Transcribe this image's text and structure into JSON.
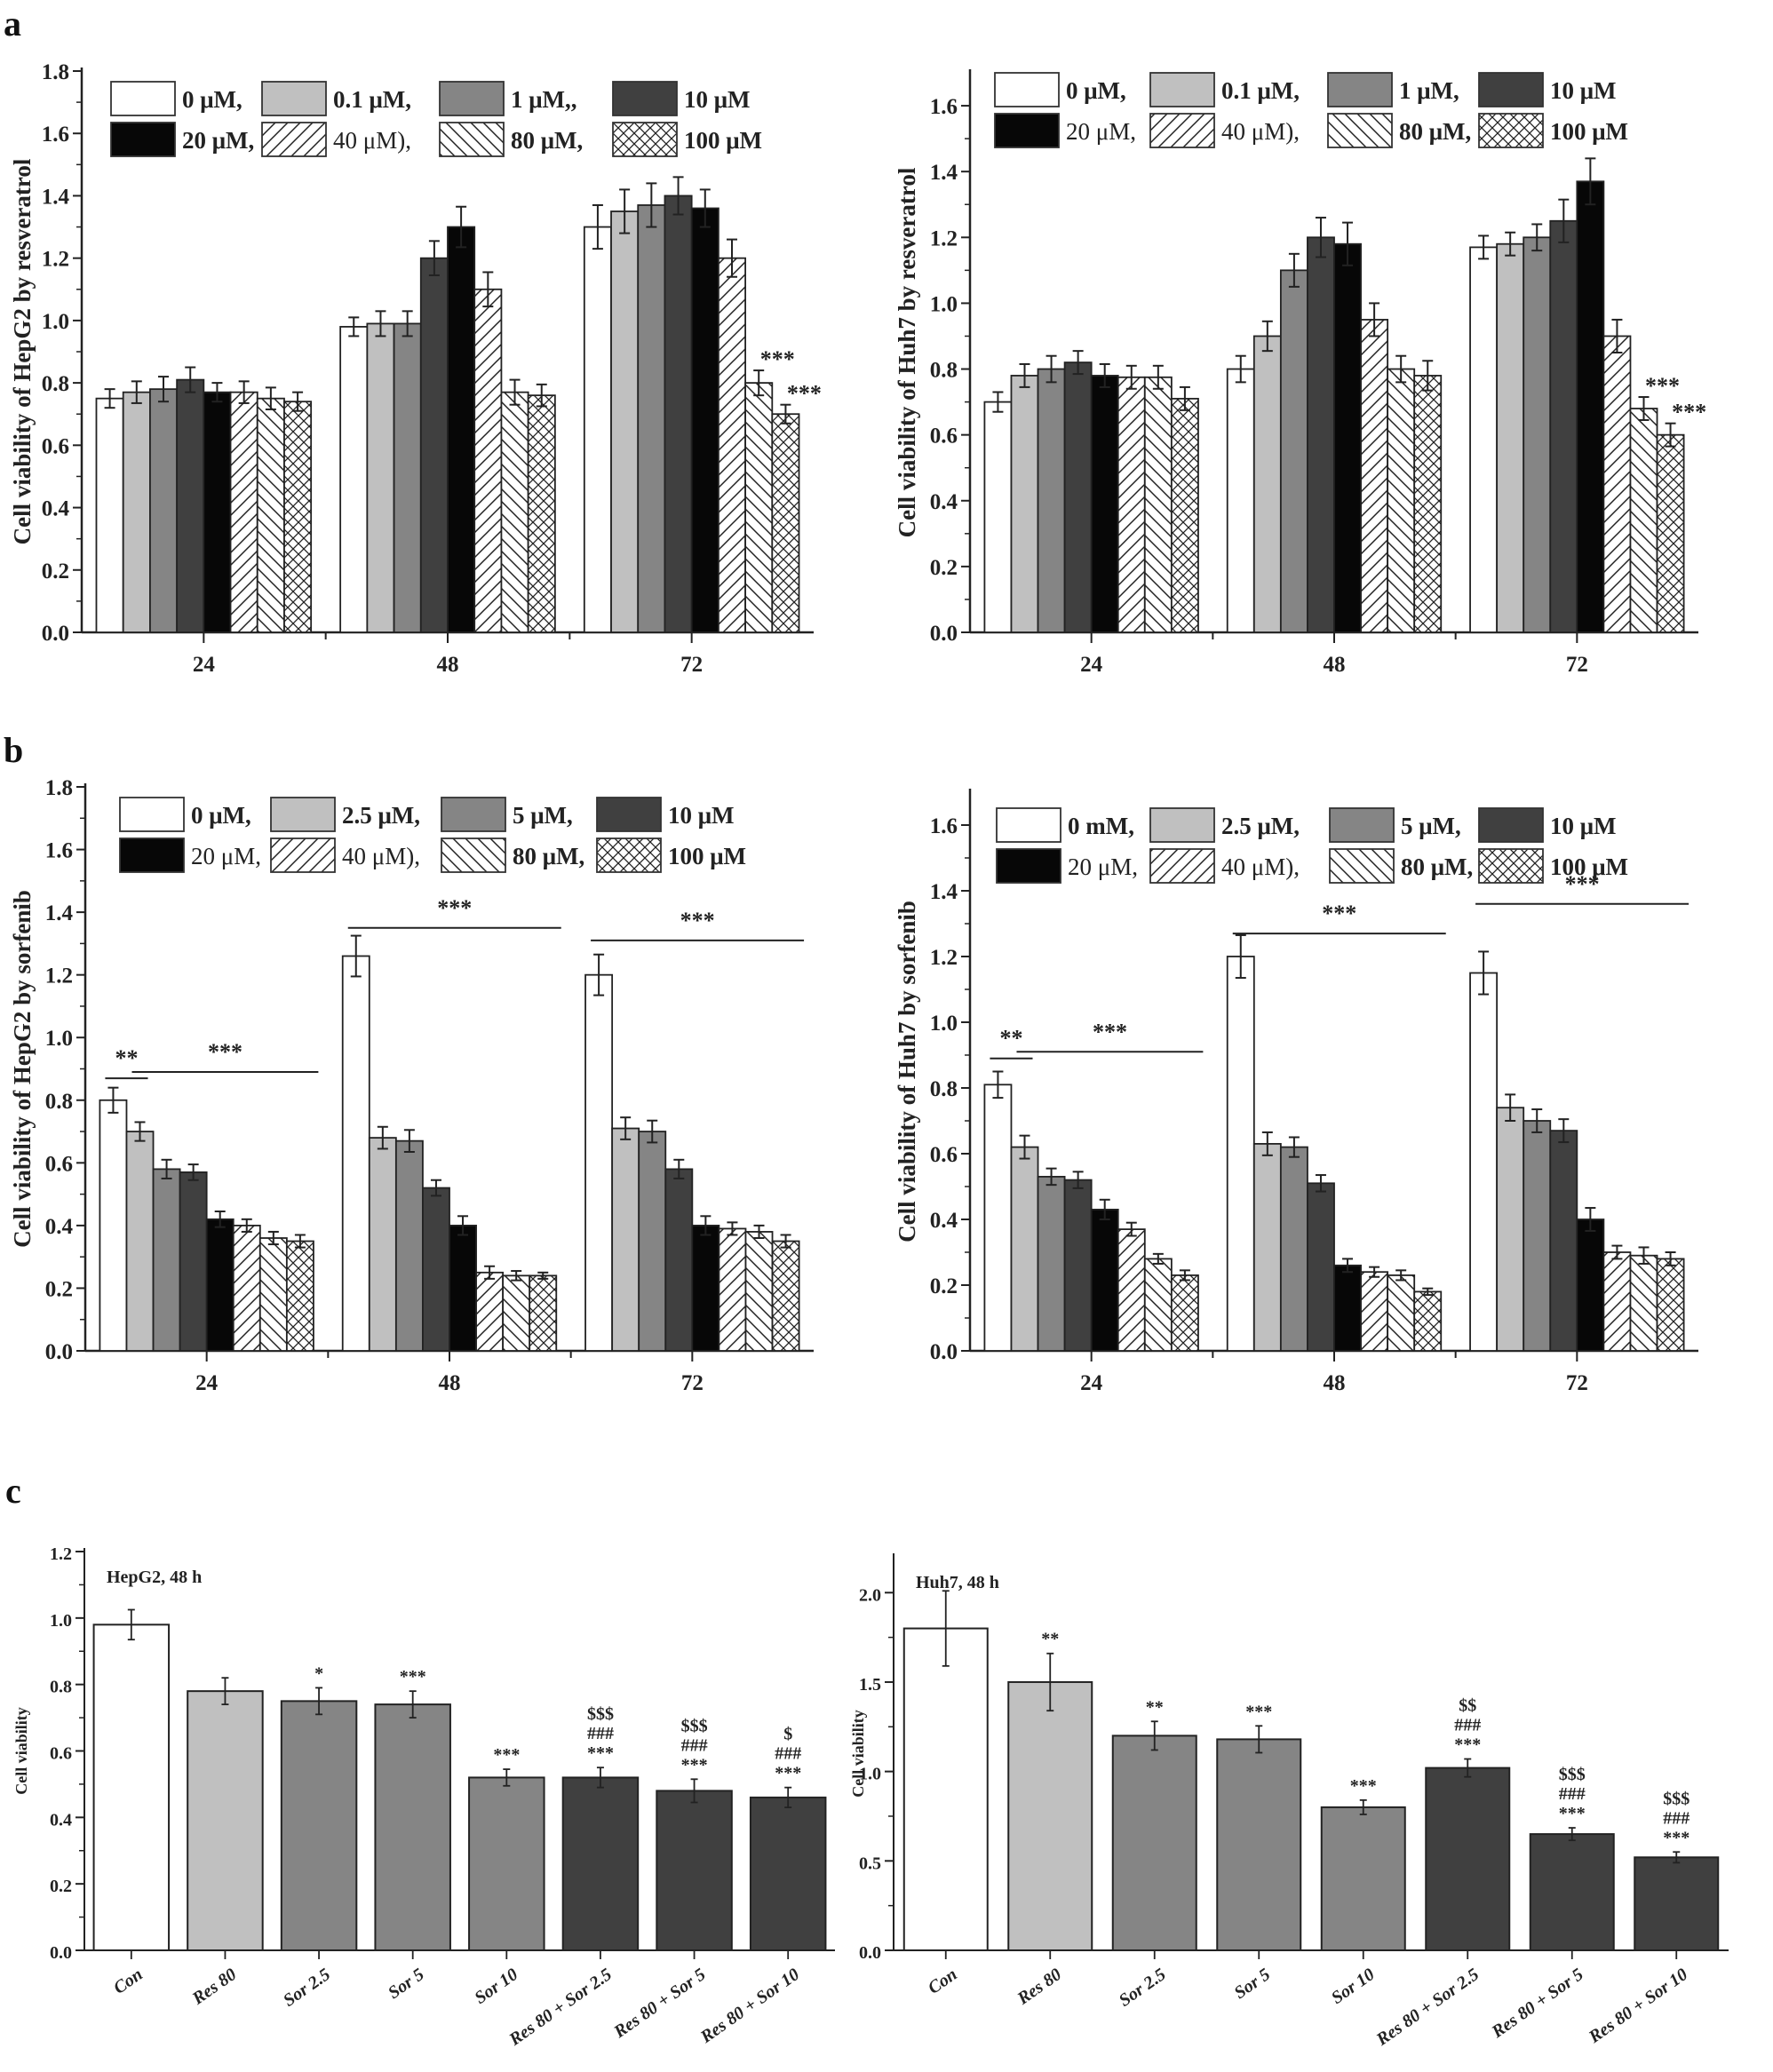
{
  "figure": {
    "panel_labels": [
      "a",
      "b",
      "c"
    ]
  },
  "styles": {
    "series_fills": [
      "#ffffff",
      "#c0c0c0",
      "#858585",
      "#404040",
      "#070707",
      "hatch-fwd",
      "hatch-back",
      "hatch-cross"
    ],
    "combo_fills": [
      "#ffffff",
      "#c0c0c0",
      "#858585",
      "#858585",
      "#858585",
      "#404040",
      "#404040",
      "#404040"
    ]
  },
  "chart_data": [
    {
      "id": "a-left",
      "panel": "a",
      "type": "bar",
      "title": "",
      "xlabel": "",
      "ylabel": "Cell viability of HepG2 by resveratrol",
      "ylim": [
        0,
        1.8
      ],
      "yticks": [
        "0.0",
        "0.2",
        "0.4",
        "0.6",
        "0.8",
        "1.0",
        "1.2",
        "1.4",
        "1.6",
        "1.8"
      ],
      "categories": [
        "24",
        "48",
        "72"
      ],
      "legend": {
        "placement": "top",
        "entries": [
          {
            "label": "0 μM,",
            "bold": true
          },
          {
            "label": "0.1 μM,",
            "bold": true
          },
          {
            "label": "1 μM,,",
            "bold": true
          },
          {
            "label": "10 μM",
            "bold": true
          },
          {
            "label": "20 μM,",
            "bold": true
          },
          {
            "label": "40 μM),",
            "bold": false
          },
          {
            "label": "80 μM,",
            "bold": true
          },
          {
            "label": "100 μM",
            "bold": true
          }
        ]
      },
      "series": [
        {
          "name": "0 μM",
          "values": [
            0.75,
            0.98,
            1.3
          ],
          "errors": [
            0.03,
            0.03,
            0.07
          ]
        },
        {
          "name": "0.1 μM",
          "values": [
            0.77,
            0.99,
            1.35
          ],
          "errors": [
            0.035,
            0.04,
            0.07
          ]
        },
        {
          "name": "1 μM",
          "values": [
            0.78,
            0.99,
            1.37
          ],
          "errors": [
            0.04,
            0.04,
            0.07
          ]
        },
        {
          "name": "10 μM",
          "values": [
            0.81,
            1.2,
            1.4
          ],
          "errors": [
            0.04,
            0.055,
            0.06
          ]
        },
        {
          "name": "20 μM",
          "values": [
            0.77,
            1.3,
            1.36
          ],
          "errors": [
            0.03,
            0.065,
            0.06
          ]
        },
        {
          "name": "40 μM",
          "values": [
            0.77,
            1.1,
            1.2
          ],
          "errors": [
            0.035,
            0.055,
            0.06
          ]
        },
        {
          "name": "80 μM",
          "values": [
            0.75,
            0.77,
            0.8
          ],
          "errors": [
            0.035,
            0.04,
            0.04
          ]
        },
        {
          "name": "100 μM",
          "values": [
            0.74,
            0.76,
            0.7
          ],
          "errors": [
            0.03,
            0.035,
            0.03
          ]
        }
      ],
      "annotations": [
        {
          "category": 2,
          "series": 6,
          "text": "***"
        },
        {
          "category": 2,
          "series": 7,
          "text": "***"
        }
      ]
    },
    {
      "id": "a-right",
      "panel": "a",
      "type": "bar",
      "title": "",
      "xlabel": "",
      "ylabel": "Cell viability of Huh7 by resveratrol",
      "ylim": [
        0,
        1.7
      ],
      "yticks": [
        "0.0",
        "0.2",
        "0.4",
        "0.6",
        "0.8",
        "1.0",
        "1.2",
        "1.4",
        "1.6"
      ],
      "categories": [
        "24",
        "48",
        "72"
      ],
      "legend": {
        "placement": "top",
        "entries": [
          {
            "label": "0 μM,",
            "bold": true
          },
          {
            "label": "0.1 μM,",
            "bold": true
          },
          {
            "label": "1 μM,",
            "bold": true
          },
          {
            "label": "10 μM",
            "bold": true
          },
          {
            "label": "20 μM,",
            "bold": false
          },
          {
            "label": "40 μM),",
            "bold": false
          },
          {
            "label": "80 μM,",
            "bold": true
          },
          {
            "label": "100 μM",
            "bold": true
          }
        ]
      },
      "series": [
        {
          "name": "0 μM",
          "values": [
            0.7,
            0.8,
            1.17
          ],
          "errors": [
            0.03,
            0.04,
            0.035
          ]
        },
        {
          "name": "0.1 μM",
          "values": [
            0.78,
            0.9,
            1.18
          ],
          "errors": [
            0.035,
            0.045,
            0.035
          ]
        },
        {
          "name": "1 μM",
          "values": [
            0.8,
            1.1,
            1.2
          ],
          "errors": [
            0.04,
            0.05,
            0.04
          ]
        },
        {
          "name": "10 μM",
          "values": [
            0.82,
            1.2,
            1.25
          ],
          "errors": [
            0.035,
            0.06,
            0.065
          ]
        },
        {
          "name": "20 μM",
          "values": [
            0.78,
            1.18,
            1.37
          ],
          "errors": [
            0.035,
            0.065,
            0.07
          ]
        },
        {
          "name": "40 μM",
          "values": [
            0.775,
            0.95,
            0.9
          ],
          "errors": [
            0.035,
            0.05,
            0.05
          ]
        },
        {
          "name": "80 μM",
          "values": [
            0.775,
            0.8,
            0.68
          ],
          "errors": [
            0.035,
            0.04,
            0.035
          ]
        },
        {
          "name": "100 μM",
          "values": [
            0.71,
            0.78,
            0.6
          ],
          "errors": [
            0.035,
            0.045,
            0.035
          ]
        }
      ],
      "annotations": [
        {
          "category": 2,
          "series": 6,
          "text": "***"
        },
        {
          "category": 2,
          "series": 7,
          "text": "***"
        }
      ]
    },
    {
      "id": "b-left",
      "panel": "b",
      "type": "bar",
      "title": "",
      "xlabel": "",
      "ylabel": "Cell viability of HepG2 by sorfenib",
      "ylim": [
        0,
        1.8
      ],
      "yticks": [
        "0.0",
        "0.2",
        "0.4",
        "0.6",
        "0.8",
        "1.0",
        "1.2",
        "1.4",
        "1.6",
        "1.8"
      ],
      "categories": [
        "24",
        "48",
        "72"
      ],
      "legend": {
        "placement": "top",
        "entries": [
          {
            "label": "0 μM,",
            "bold": true
          },
          {
            "label": "2.5 μM,",
            "bold": true
          },
          {
            "label": "5 μM,",
            "bold": true
          },
          {
            "label": "10 μM",
            "bold": true
          },
          {
            "label": "20 μM,",
            "bold": false
          },
          {
            "label": "40 μM),",
            "bold": false
          },
          {
            "label": "80 μM,",
            "bold": true
          },
          {
            "label": "100 μM",
            "bold": true
          }
        ]
      },
      "series": [
        {
          "name": "0 μM",
          "values": [
            0.8,
            1.26,
            1.2
          ],
          "errors": [
            0.04,
            0.065,
            0.065
          ]
        },
        {
          "name": "2.5 μM",
          "values": [
            0.7,
            0.68,
            0.71
          ],
          "errors": [
            0.03,
            0.035,
            0.035
          ]
        },
        {
          "name": "5 μM",
          "values": [
            0.58,
            0.67,
            0.7
          ],
          "errors": [
            0.03,
            0.035,
            0.035
          ]
        },
        {
          "name": "10 μM",
          "values": [
            0.57,
            0.52,
            0.58
          ],
          "errors": [
            0.025,
            0.025,
            0.03
          ]
        },
        {
          "name": "20 μM",
          "values": [
            0.42,
            0.4,
            0.4
          ],
          "errors": [
            0.025,
            0.03,
            0.03
          ]
        },
        {
          "name": "40 μM",
          "values": [
            0.4,
            0.25,
            0.39
          ],
          "errors": [
            0.02,
            0.02,
            0.02
          ]
        },
        {
          "name": "80 μM",
          "values": [
            0.36,
            0.24,
            0.38
          ],
          "errors": [
            0.02,
            0.015,
            0.02
          ]
        },
        {
          "name": "100 μM",
          "values": [
            0.35,
            0.24,
            0.35
          ],
          "errors": [
            0.02,
            0.01,
            0.02
          ]
        }
      ],
      "brackets": [
        {
          "category": 0,
          "from_series": 0,
          "to_series": 1,
          "text": "**",
          "y": 0.87
        },
        {
          "category": 0,
          "from_series": 1,
          "to_series": 7,
          "text": "***",
          "y": 0.89
        },
        {
          "category": 1,
          "from_series": 0,
          "to_series": 7,
          "text": "***",
          "y": 1.35
        },
        {
          "category": 2,
          "from_series": 0,
          "to_series": 7,
          "text": "***",
          "y": 1.31
        }
      ]
    },
    {
      "id": "b-right",
      "panel": "b",
      "type": "bar",
      "title": "",
      "xlabel": "",
      "ylabel": "Cell viability of Huh7 by sorfenib",
      "ylim": [
        0,
        1.7
      ],
      "yticks": [
        "0.0",
        "0.2",
        "0.4",
        "0.6",
        "0.8",
        "1.0",
        "1.2",
        "1.4",
        "1.6"
      ],
      "categories": [
        "24",
        "48",
        "72"
      ],
      "legend": {
        "placement": "top",
        "entries": [
          {
            "label": "0 mM,",
            "bold": true
          },
          {
            "label": "2.5 μM,",
            "bold": true
          },
          {
            "label": "5 μM,",
            "bold": true
          },
          {
            "label": "10 μM",
            "bold": true
          },
          {
            "label": "20 μM,",
            "bold": false
          },
          {
            "label": "40 μM),",
            "bold": false
          },
          {
            "label": "80 μM,",
            "bold": true
          },
          {
            "label": "100 μM",
            "bold": true
          }
        ]
      },
      "series": [
        {
          "name": "0 mM",
          "values": [
            0.81,
            1.2,
            1.15
          ],
          "errors": [
            0.04,
            0.065,
            0.065
          ]
        },
        {
          "name": "2.5 μM",
          "values": [
            0.62,
            0.63,
            0.74
          ],
          "errors": [
            0.035,
            0.035,
            0.04
          ]
        },
        {
          "name": "5 μM",
          "values": [
            0.53,
            0.62,
            0.7
          ],
          "errors": [
            0.025,
            0.03,
            0.035
          ]
        },
        {
          "name": "10 μM",
          "values": [
            0.52,
            0.51,
            0.67
          ],
          "errors": [
            0.025,
            0.025,
            0.035
          ]
        },
        {
          "name": "20 μM",
          "values": [
            0.43,
            0.26,
            0.4
          ],
          "errors": [
            0.03,
            0.02,
            0.035
          ]
        },
        {
          "name": "40 μM",
          "values": [
            0.37,
            0.24,
            0.3
          ],
          "errors": [
            0.02,
            0.015,
            0.02
          ]
        },
        {
          "name": "80 μM",
          "values": [
            0.28,
            0.23,
            0.29
          ],
          "errors": [
            0.015,
            0.015,
            0.025
          ]
        },
        {
          "name": "100 μM",
          "values": [
            0.23,
            0.18,
            0.28
          ],
          "errors": [
            0.015,
            0.01,
            0.02
          ]
        }
      ],
      "brackets": [
        {
          "category": 0,
          "from_series": 0,
          "to_series": 1,
          "text": "**",
          "y": 0.89
        },
        {
          "category": 0,
          "from_series": 1,
          "to_series": 7,
          "text": "***",
          "y": 0.91
        },
        {
          "category": 1,
          "from_series": 0,
          "to_series": 7,
          "text": "***",
          "y": 1.27
        },
        {
          "category": 2,
          "from_series": 0,
          "to_series": 7,
          "text": "***",
          "y": 1.36
        }
      ]
    },
    {
      "id": "c-left",
      "panel": "c",
      "type": "bar",
      "title": "HepG2, 48 h",
      "xlabel": "",
      "ylabel": "Cell viability",
      "ylim": [
        0,
        1.2
      ],
      "yticks": [
        "0.0",
        "0.2",
        "0.4",
        "0.6",
        "0.8",
        "1.0",
        "1.2"
      ],
      "categories": [
        "Con",
        "Res  80",
        "Sor 2.5",
        "Sor 5",
        "Sor 10",
        "Res 80 + Sor 2.5",
        "Res 80 + Sor 5",
        "Res 80 + Sor 10"
      ],
      "values": [
        0.98,
        0.78,
        0.75,
        0.74,
        0.52,
        0.52,
        0.48,
        0.46
      ],
      "errors": [
        0.045,
        0.04,
        0.04,
        0.04,
        0.025,
        0.03,
        0.035,
        0.03
      ],
      "annotations": [
        [],
        [],
        [
          "*"
        ],
        [
          "***"
        ],
        [
          "***"
        ],
        [
          "$$$",
          "###",
          "***"
        ],
        [
          "$$$",
          "###",
          "***"
        ],
        [
          "$",
          "###",
          "***"
        ]
      ]
    },
    {
      "id": "c-right",
      "panel": "c",
      "type": "bar",
      "title": "Huh7, 48 h",
      "xlabel": "",
      "ylabel": "Cell viability",
      "ylim": [
        0,
        2.2
      ],
      "yticks": [
        "0.0",
        "0.5",
        "1.0",
        "1.5",
        "2.0"
      ],
      "categories": [
        "Con",
        "Res  80",
        "Sor 2.5",
        "Sor 5",
        "Sor 10",
        "Res 80 + Sor 2.5",
        "Res 80 + Sor 5",
        "Res 80 + Sor 10"
      ],
      "values": [
        1.8,
        1.5,
        1.2,
        1.18,
        0.8,
        1.02,
        0.65,
        0.52
      ],
      "errors": [
        0.21,
        0.16,
        0.08,
        0.075,
        0.04,
        0.05,
        0.035,
        0.03
      ],
      "annotations": [
        [],
        [
          "**"
        ],
        [
          "**"
        ],
        [
          "***"
        ],
        [
          "***"
        ],
        [
          "$$",
          "###",
          "***"
        ],
        [
          "$$$",
          "###",
          "***"
        ],
        [
          "$$$",
          "###",
          "***"
        ]
      ]
    }
  ]
}
